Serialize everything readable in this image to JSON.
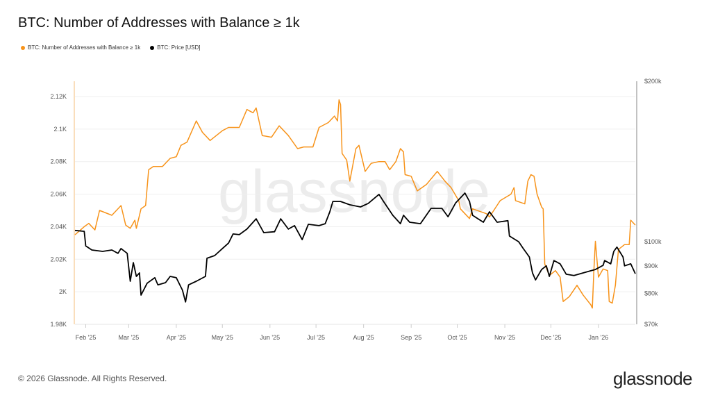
{
  "title": "BTC: Number of Addresses with Balance ≥ 1k",
  "footer": "© 2026 Glassnode. All Rights Reserved.",
  "logo_text": "glassnode",
  "watermark_text": "glassnode",
  "chart_data": {
    "type": "line",
    "title": "BTC: Number of Addresses with Balance ≥ 1k",
    "legend_position": "top-left",
    "grid": true,
    "x_range": [
      "2025-01-25",
      "2026-01-25"
    ],
    "x_ticks": [
      {
        "date": "2025-02-01",
        "label": "Feb '25"
      },
      {
        "date": "2025-03-01",
        "label": "Mar '25"
      },
      {
        "date": "2025-04-01",
        "label": "Apr '25"
      },
      {
        "date": "2025-05-01",
        "label": "May '25"
      },
      {
        "date": "2025-06-01",
        "label": "Jun '25"
      },
      {
        "date": "2025-07-01",
        "label": "Jul '25"
      },
      {
        "date": "2025-08-01",
        "label": "Aug '25"
      },
      {
        "date": "2025-09-01",
        "label": "Sep '25"
      },
      {
        "date": "2025-10-01",
        "label": "Oct '25"
      },
      {
        "date": "2025-11-01",
        "label": "Nov '25"
      },
      {
        "date": "2025-12-01",
        "label": "Dec '25"
      },
      {
        "date": "2026-01-01",
        "label": "Jan '26"
      }
    ],
    "y_left": {
      "scale": "linear",
      "ylim": [
        1980,
        2120
      ],
      "ticks": [
        {
          "value": 1980,
          "label": "1.98K"
        },
        {
          "value": 2000,
          "label": "2K"
        },
        {
          "value": 2020,
          "label": "2.02K"
        },
        {
          "value": 2040,
          "label": "2.04K"
        },
        {
          "value": 2060,
          "label": "2.06K"
        },
        {
          "value": 2080,
          "label": "2.08K"
        },
        {
          "value": 2100,
          "label": "2.1K"
        },
        {
          "value": 2120,
          "label": "2.12K"
        }
      ]
    },
    "y_right": {
      "scale": "log",
      "ylim": [
        70000,
        200000
      ],
      "ticks": [
        {
          "value": 70000,
          "label": "$70k"
        },
        {
          "value": 80000,
          "label": "$80k"
        },
        {
          "value": 90000,
          "label": "$90k"
        },
        {
          "value": 100000,
          "label": "$100k"
        },
        {
          "value": 200000,
          "label": "$200k"
        }
      ]
    },
    "series": [
      {
        "name": "BTC: Number of Addresses with Balance ≥ 1k",
        "axis": "left",
        "color": "#f7931a",
        "points": [
          [
            "2025-01-25",
            2035
          ],
          [
            "2025-01-31",
            2040
          ],
          [
            "2025-02-03",
            2042
          ],
          [
            "2025-02-07",
            2038
          ],
          [
            "2025-02-10",
            2050
          ],
          [
            "2025-02-18",
            2047
          ],
          [
            "2025-02-24",
            2053
          ],
          [
            "2025-02-27",
            2041
          ],
          [
            "2025-03-02",
            2039
          ],
          [
            "2025-03-05",
            2044
          ],
          [
            "2025-03-06",
            2039
          ],
          [
            "2025-03-09",
            2051
          ],
          [
            "2025-03-12",
            2053
          ],
          [
            "2025-03-14",
            2075
          ],
          [
            "2025-03-17",
            2077
          ],
          [
            "2025-03-23",
            2077
          ],
          [
            "2025-03-28",
            2082
          ],
          [
            "2025-04-01",
            2083
          ],
          [
            "2025-04-04",
            2090
          ],
          [
            "2025-04-08",
            2092
          ],
          [
            "2025-04-14",
            2105
          ],
          [
            "2025-04-18",
            2098
          ],
          [
            "2025-04-23",
            2093
          ],
          [
            "2025-05-01",
            2099
          ],
          [
            "2025-05-05",
            2101
          ],
          [
            "2025-05-12",
            2101
          ],
          [
            "2025-05-17",
            2112
          ],
          [
            "2025-05-21",
            2110
          ],
          [
            "2025-05-23",
            2113
          ],
          [
            "2025-05-27",
            2096
          ],
          [
            "2025-06-02",
            2095
          ],
          [
            "2025-06-07",
            2102
          ],
          [
            "2025-06-13",
            2096
          ],
          [
            "2025-06-19",
            2088
          ],
          [
            "2025-06-23",
            2089
          ],
          [
            "2025-06-29",
            2089
          ],
          [
            "2025-07-03",
            2101
          ],
          [
            "2025-07-09",
            2104
          ],
          [
            "2025-07-13",
            2108
          ],
          [
            "2025-07-15",
            2105
          ],
          [
            "2025-07-16",
            2118
          ],
          [
            "2025-07-17",
            2115
          ],
          [
            "2025-07-18",
            2085
          ],
          [
            "2025-07-21",
            2081
          ],
          [
            "2025-07-23",
            2068
          ],
          [
            "2025-07-27",
            2088
          ],
          [
            "2025-07-29",
            2090
          ],
          [
            "2025-08-02",
            2074
          ],
          [
            "2025-08-06",
            2079
          ],
          [
            "2025-08-11",
            2080
          ],
          [
            "2025-08-15",
            2080
          ],
          [
            "2025-08-18",
            2075
          ],
          [
            "2025-08-22",
            2080
          ],
          [
            "2025-08-25",
            2088
          ],
          [
            "2025-08-27",
            2086
          ],
          [
            "2025-08-28",
            2072
          ],
          [
            "2025-09-01",
            2071
          ],
          [
            "2025-09-05",
            2062
          ],
          [
            "2025-09-11",
            2066
          ],
          [
            "2025-09-18",
            2074
          ],
          [
            "2025-09-23",
            2068
          ],
          [
            "2025-09-27",
            2064
          ],
          [
            "2025-10-02",
            2056
          ],
          [
            "2025-10-03",
            2051
          ],
          [
            "2025-10-09",
            2045
          ],
          [
            "2025-10-11",
            2051
          ],
          [
            "2025-10-20",
            2048
          ],
          [
            "2025-10-22",
            2046
          ],
          [
            "2025-10-29",
            2056
          ],
          [
            "2025-11-05",
            2060
          ],
          [
            "2025-11-07",
            2064
          ],
          [
            "2025-11-08",
            2056
          ],
          [
            "2025-11-14",
            2054
          ],
          [
            "2025-11-16",
            2068
          ],
          [
            "2025-11-18",
            2072
          ],
          [
            "2025-11-20",
            2071
          ],
          [
            "2025-11-22",
            2060
          ],
          [
            "2025-11-25",
            2052
          ],
          [
            "2025-11-26",
            2051
          ],
          [
            "2025-11-27",
            2017
          ],
          [
            "2025-11-30",
            2010
          ],
          [
            "2025-12-04",
            2013
          ],
          [
            "2025-12-07",
            2009
          ],
          [
            "2025-12-09",
            1994
          ],
          [
            "2025-12-13",
            1997
          ],
          [
            "2025-12-18",
            2004
          ],
          [
            "2025-12-22",
            1998
          ],
          [
            "2025-12-27",
            1992
          ],
          [
            "2025-12-28",
            1990
          ],
          [
            "2025-12-29",
            2013
          ],
          [
            "2025-12-30",
            2031
          ],
          [
            "2026-01-01",
            2009
          ],
          [
            "2026-01-04",
            2014
          ],
          [
            "2026-01-07",
            2013
          ],
          [
            "2026-01-08",
            1994
          ],
          [
            "2026-01-10",
            1993
          ],
          [
            "2026-01-12",
            2004
          ],
          [
            "2026-01-14",
            2026
          ],
          [
            "2026-01-18",
            2029
          ],
          [
            "2026-01-21",
            2029
          ],
          [
            "2026-01-22",
            2044
          ],
          [
            "2026-01-25",
            2041
          ]
        ]
      },
      {
        "name": "BTC: Price [USD]",
        "axis": "right",
        "color": "#000000",
        "points": [
          [
            "2025-01-25",
            105000
          ],
          [
            "2025-01-31",
            104600
          ],
          [
            "2025-02-01",
            98200
          ],
          [
            "2025-02-05",
            96500
          ],
          [
            "2025-02-12",
            95900
          ],
          [
            "2025-02-18",
            96500
          ],
          [
            "2025-02-22",
            95100
          ],
          [
            "2025-02-24",
            97100
          ],
          [
            "2025-02-28",
            95100
          ],
          [
            "2025-03-02",
            84300
          ],
          [
            "2025-03-04",
            91400
          ],
          [
            "2025-03-06",
            86100
          ],
          [
            "2025-03-08",
            87400
          ],
          [
            "2025-03-09",
            79400
          ],
          [
            "2025-03-13",
            83600
          ],
          [
            "2025-03-18",
            85600
          ],
          [
            "2025-03-20",
            83000
          ],
          [
            "2025-03-25",
            83800
          ],
          [
            "2025-03-28",
            86100
          ],
          [
            "2025-04-01",
            85600
          ],
          [
            "2025-04-05",
            81100
          ],
          [
            "2025-04-07",
            77100
          ],
          [
            "2025-04-09",
            83000
          ],
          [
            "2025-04-14",
            84300
          ],
          [
            "2025-04-20",
            86100
          ],
          [
            "2025-04-21",
            93100
          ],
          [
            "2025-04-26",
            94200
          ],
          [
            "2025-05-01",
            97100
          ],
          [
            "2025-05-05",
            99400
          ],
          [
            "2025-05-08",
            103400
          ],
          [
            "2025-05-12",
            103100
          ],
          [
            "2025-05-17",
            105600
          ],
          [
            "2025-05-23",
            110400
          ],
          [
            "2025-05-28",
            104000
          ],
          [
            "2025-06-04",
            104400
          ],
          [
            "2025-06-08",
            110400
          ],
          [
            "2025-06-13",
            105600
          ],
          [
            "2025-06-17",
            107200
          ],
          [
            "2025-06-22",
            100900
          ],
          [
            "2025-06-26",
            107800
          ],
          [
            "2025-07-03",
            107200
          ],
          [
            "2025-07-07",
            108100
          ],
          [
            "2025-07-10",
            113800
          ],
          [
            "2025-07-12",
            119000
          ],
          [
            "2025-07-17",
            119000
          ],
          [
            "2025-07-23",
            117300
          ],
          [
            "2025-07-30",
            116200
          ],
          [
            "2025-08-04",
            118000
          ],
          [
            "2025-08-11",
            122700
          ],
          [
            "2025-08-14",
            119000
          ],
          [
            "2025-08-20",
            112100
          ],
          [
            "2025-08-25",
            108100
          ],
          [
            "2025-08-27",
            112100
          ],
          [
            "2025-08-31",
            108800
          ],
          [
            "2025-09-07",
            108100
          ],
          [
            "2025-09-14",
            115500
          ],
          [
            "2025-09-21",
            115500
          ],
          [
            "2025-09-25",
            111400
          ],
          [
            "2025-09-30",
            118300
          ],
          [
            "2025-10-06",
            123400
          ],
          [
            "2025-10-09",
            119000
          ],
          [
            "2025-10-11",
            112100
          ],
          [
            "2025-10-18",
            108800
          ],
          [
            "2025-10-22",
            113800
          ],
          [
            "2025-10-27",
            108800
          ],
          [
            "2025-11-03",
            109500
          ],
          [
            "2025-11-04",
            102500
          ],
          [
            "2025-11-10",
            100000
          ],
          [
            "2025-11-13",
            97100
          ],
          [
            "2025-11-17",
            93600
          ],
          [
            "2025-11-19",
            87400
          ],
          [
            "2025-11-21",
            84800
          ],
          [
            "2025-11-25",
            88700
          ],
          [
            "2025-11-28",
            90100
          ],
          [
            "2025-11-30",
            86100
          ],
          [
            "2025-12-03",
            92200
          ],
          [
            "2025-12-07",
            90900
          ],
          [
            "2025-12-11",
            86900
          ],
          [
            "2025-12-16",
            86400
          ],
          [
            "2025-12-22",
            87400
          ],
          [
            "2025-12-27",
            88200
          ],
          [
            "2025-12-30",
            88700
          ],
          [
            "2026-01-04",
            90300
          ],
          [
            "2026-01-05",
            92200
          ],
          [
            "2026-01-09",
            90900
          ],
          [
            "2026-01-11",
            95900
          ],
          [
            "2026-01-13",
            97700
          ],
          [
            "2026-01-17",
            93600
          ],
          [
            "2026-01-18",
            90100
          ],
          [
            "2026-01-22",
            90900
          ],
          [
            "2026-01-25",
            87100
          ]
        ]
      }
    ]
  }
}
